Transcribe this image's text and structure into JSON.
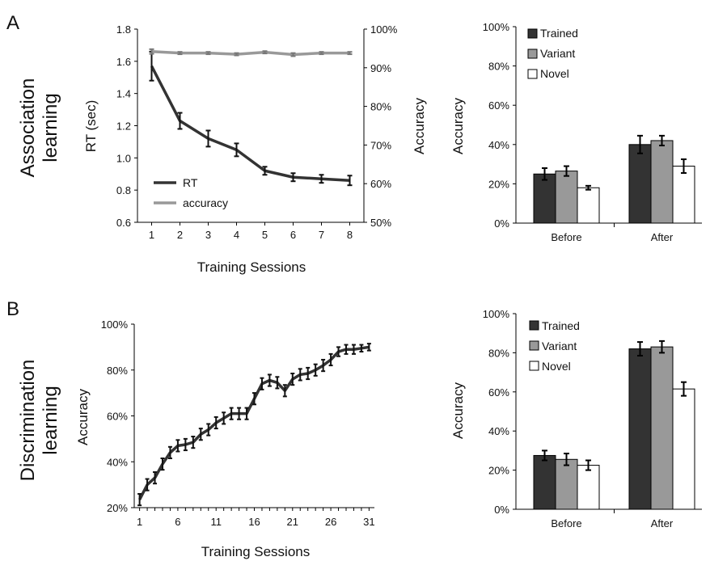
{
  "panels": [
    {
      "letter": "A",
      "row_label_lines": [
        "Association",
        "learning"
      ]
    },
    {
      "letter": "B",
      "row_label_lines": [
        "Discrimination",
        "learning"
      ]
    }
  ],
  "chart_data": [
    {
      "id": "a-line",
      "type": "line",
      "x": [
        1,
        2,
        3,
        4,
        5,
        6,
        7,
        8
      ],
      "xlabel": "Training Sessions",
      "ylabel": "RT (sec)",
      "y2label": "Accuracy",
      "ylim": [
        0.6,
        1.8
      ],
      "yticks": [
        "0.6",
        "0.8",
        "1.0",
        "1.2",
        "1.4",
        "1.6",
        "1.8"
      ],
      "y2lim": [
        50,
        100
      ],
      "y2ticks": [
        "50%",
        "60%",
        "70%",
        "80%",
        "90%",
        "100%"
      ],
      "series": [
        {
          "name": "RT",
          "axis": "left",
          "color": "#333333",
          "values": [
            1.57,
            1.23,
            1.12,
            1.05,
            0.92,
            0.88,
            0.87,
            0.86
          ],
          "errors": [
            0.09,
            0.05,
            0.05,
            0.04,
            0.025,
            0.025,
            0.025,
            0.03
          ]
        },
        {
          "name": "accuracy",
          "axis": "right",
          "color": "#999999",
          "values": [
            94.2,
            93.8,
            93.8,
            93.5,
            94.0,
            93.4,
            93.8,
            93.8
          ],
          "errors": [
            0.6,
            0.3,
            0.3,
            0.3,
            0.3,
            0.4,
            0.3,
            0.3
          ]
        }
      ],
      "legend_position": "bottom-left"
    },
    {
      "id": "a-bar",
      "type": "bar",
      "categories": [
        "Before",
        "After"
      ],
      "ylabel": "Accuracy",
      "ylim": [
        0,
        100
      ],
      "yticks": [
        "0%",
        "20%",
        "40%",
        "60%",
        "80%",
        "100%"
      ],
      "series": [
        {
          "name": "Trained",
          "color": "#333333",
          "values": [
            25,
            40
          ],
          "errors": [
            3,
            4.5
          ]
        },
        {
          "name": "Variant",
          "color": "#999999",
          "values": [
            26.5,
            42
          ],
          "errors": [
            2.5,
            2.5
          ]
        },
        {
          "name": "Novel",
          "color": "#ffffff",
          "values": [
            18,
            29
          ],
          "errors": [
            1,
            3.5
          ]
        }
      ],
      "legend_position": "top-left"
    },
    {
      "id": "b-line",
      "type": "line",
      "x": [
        1,
        2,
        3,
        4,
        5,
        6,
        7,
        8,
        9,
        10,
        11,
        12,
        13,
        14,
        15,
        16,
        17,
        18,
        19,
        20,
        21,
        22,
        23,
        24,
        25,
        26,
        27,
        28,
        29,
        30,
        31
      ],
      "xticks": [
        "1",
        "6",
        "11",
        "16",
        "21",
        "26",
        "31"
      ],
      "xlabel": "Training Sessions",
      "ylabel": "Accuracy",
      "ylim": [
        20,
        100
      ],
      "yticks": [
        "20%",
        "40%",
        "60%",
        "80%",
        "100%"
      ],
      "series": [
        {
          "color": "#333333",
          "values": [
            23.5,
            30,
            33,
            39,
            44,
            47,
            47.5,
            48.5,
            52,
            54,
            57,
            59,
            61,
            61,
            61,
            67.5,
            74,
            75.5,
            74.5,
            71,
            76,
            78,
            78.5,
            80,
            82,
            84.5,
            88,
            89,
            89,
            89.5,
            90
          ],
          "errors": [
            2.5,
            2.5,
            2.5,
            2.5,
            2.5,
            2.5,
            2.5,
            2.5,
            2.5,
            2.5,
            2.5,
            2.5,
            2.5,
            2.5,
            2.5,
            2.5,
            2.5,
            2.5,
            2.5,
            2.5,
            2.5,
            2.5,
            2.5,
            2.5,
            2.5,
            2.5,
            2,
            2,
            2,
            1.5,
            1.5
          ]
        }
      ]
    },
    {
      "id": "b-bar",
      "type": "bar",
      "categories": [
        "Before",
        "After"
      ],
      "ylabel": "Accuracy",
      "ylim": [
        0,
        100
      ],
      "yticks": [
        "0%",
        "20%",
        "40%",
        "60%",
        "80%",
        "100%"
      ],
      "series": [
        {
          "name": "Trained",
          "color": "#333333",
          "values": [
            27.5,
            82
          ],
          "errors": [
            2.5,
            3.5
          ]
        },
        {
          "name": "Variant",
          "color": "#999999",
          "values": [
            25.5,
            83
          ],
          "errors": [
            3,
            3
          ]
        },
        {
          "name": "Novel",
          "color": "#ffffff",
          "values": [
            22.5,
            61.5
          ],
          "errors": [
            2.5,
            3.5
          ]
        }
      ],
      "legend_position": "top-left"
    }
  ]
}
